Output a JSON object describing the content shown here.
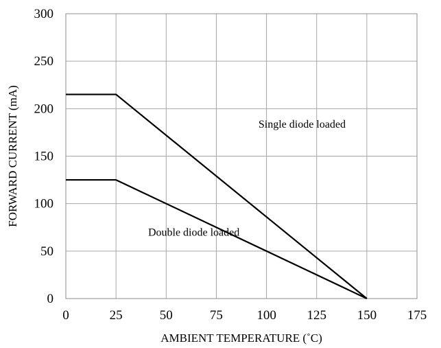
{
  "chart_data": {
    "type": "line",
    "title": "",
    "xlabel": "AMBIENT TEMPERATURE (˚C)",
    "ylabel": "FORWARD CURRENT (mA)",
    "xlim": [
      0,
      175
    ],
    "ylim": [
      0,
      300
    ],
    "x_ticks": [
      0,
      25,
      50,
      75,
      100,
      125,
      150,
      175
    ],
    "y_ticks": [
      0,
      50,
      100,
      150,
      200,
      250,
      300
    ],
    "grid": true,
    "series": [
      {
        "x": [
          0,
          25,
          150
        ],
        "y": [
          215,
          215,
          0
        ],
        "color": "#000000"
      },
      {
        "x": [
          0,
          25,
          150
        ],
        "y": [
          125,
          125,
          0
        ],
        "color": "#000000"
      }
    ],
    "annotations": [
      {
        "text": "Single diode loaded",
        "x": 96,
        "y": 180
      },
      {
        "text": "Double diode loaded",
        "x": 41,
        "y": 66
      }
    ]
  }
}
